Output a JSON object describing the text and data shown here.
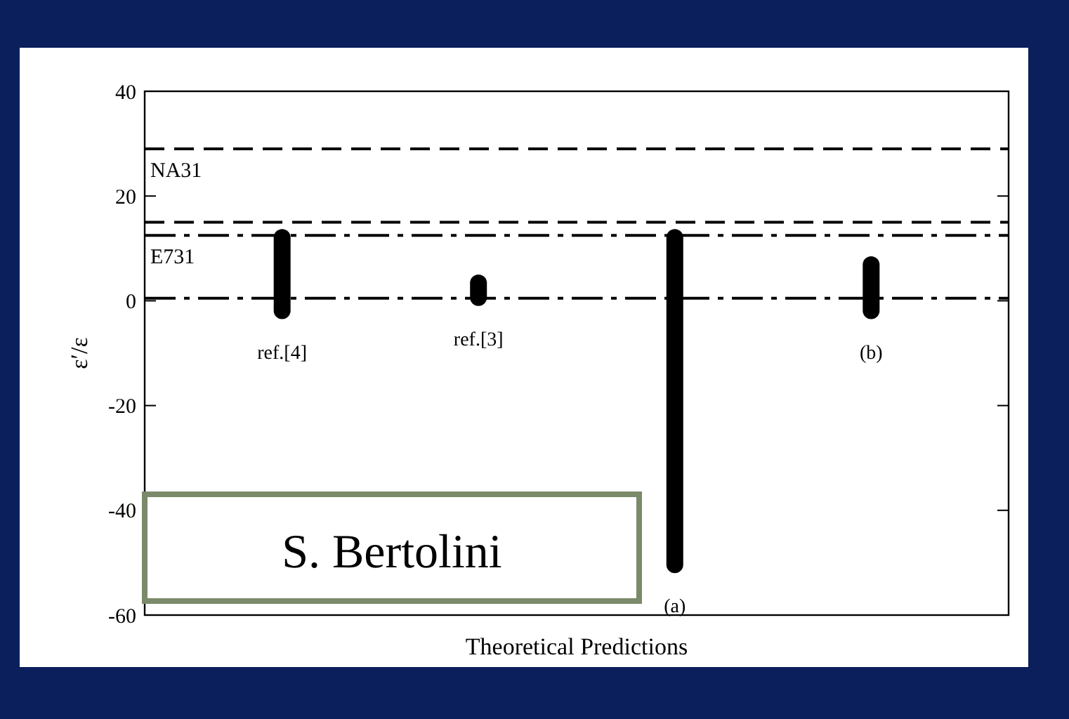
{
  "chart_data": {
    "type": "bar",
    "xlabel": "Theoretical Predictions",
    "ylabel": "ε′/ε",
    "categories": [
      "ref.[4]",
      "ref.[3]",
      "(a)",
      "(b)"
    ],
    "base": [
      -3.5,
      -1,
      -52,
      -3.5
    ],
    "values": [
      17.2,
      6,
      65.7,
      12
    ],
    "color": "#000000",
    "ylim": [
      -60,
      40
    ],
    "yticks": [
      -60,
      -40,
      -20,
      0,
      20,
      40
    ],
    "ref_lines": [
      {
        "axis": "y",
        "value": 29,
        "label": "NA31",
        "line_style": "dashed"
      },
      {
        "axis": "y",
        "value": 15,
        "label": null,
        "line_style": "dashed"
      },
      {
        "axis": "y",
        "value": 12.5,
        "label": "E731",
        "line_style": "dashdot"
      },
      {
        "axis": "y",
        "value": 0.5,
        "label": null,
        "line_style": "dashdot"
      }
    ],
    "annotations": [
      "S. Bertolini"
    ],
    "grid": false
  }
}
